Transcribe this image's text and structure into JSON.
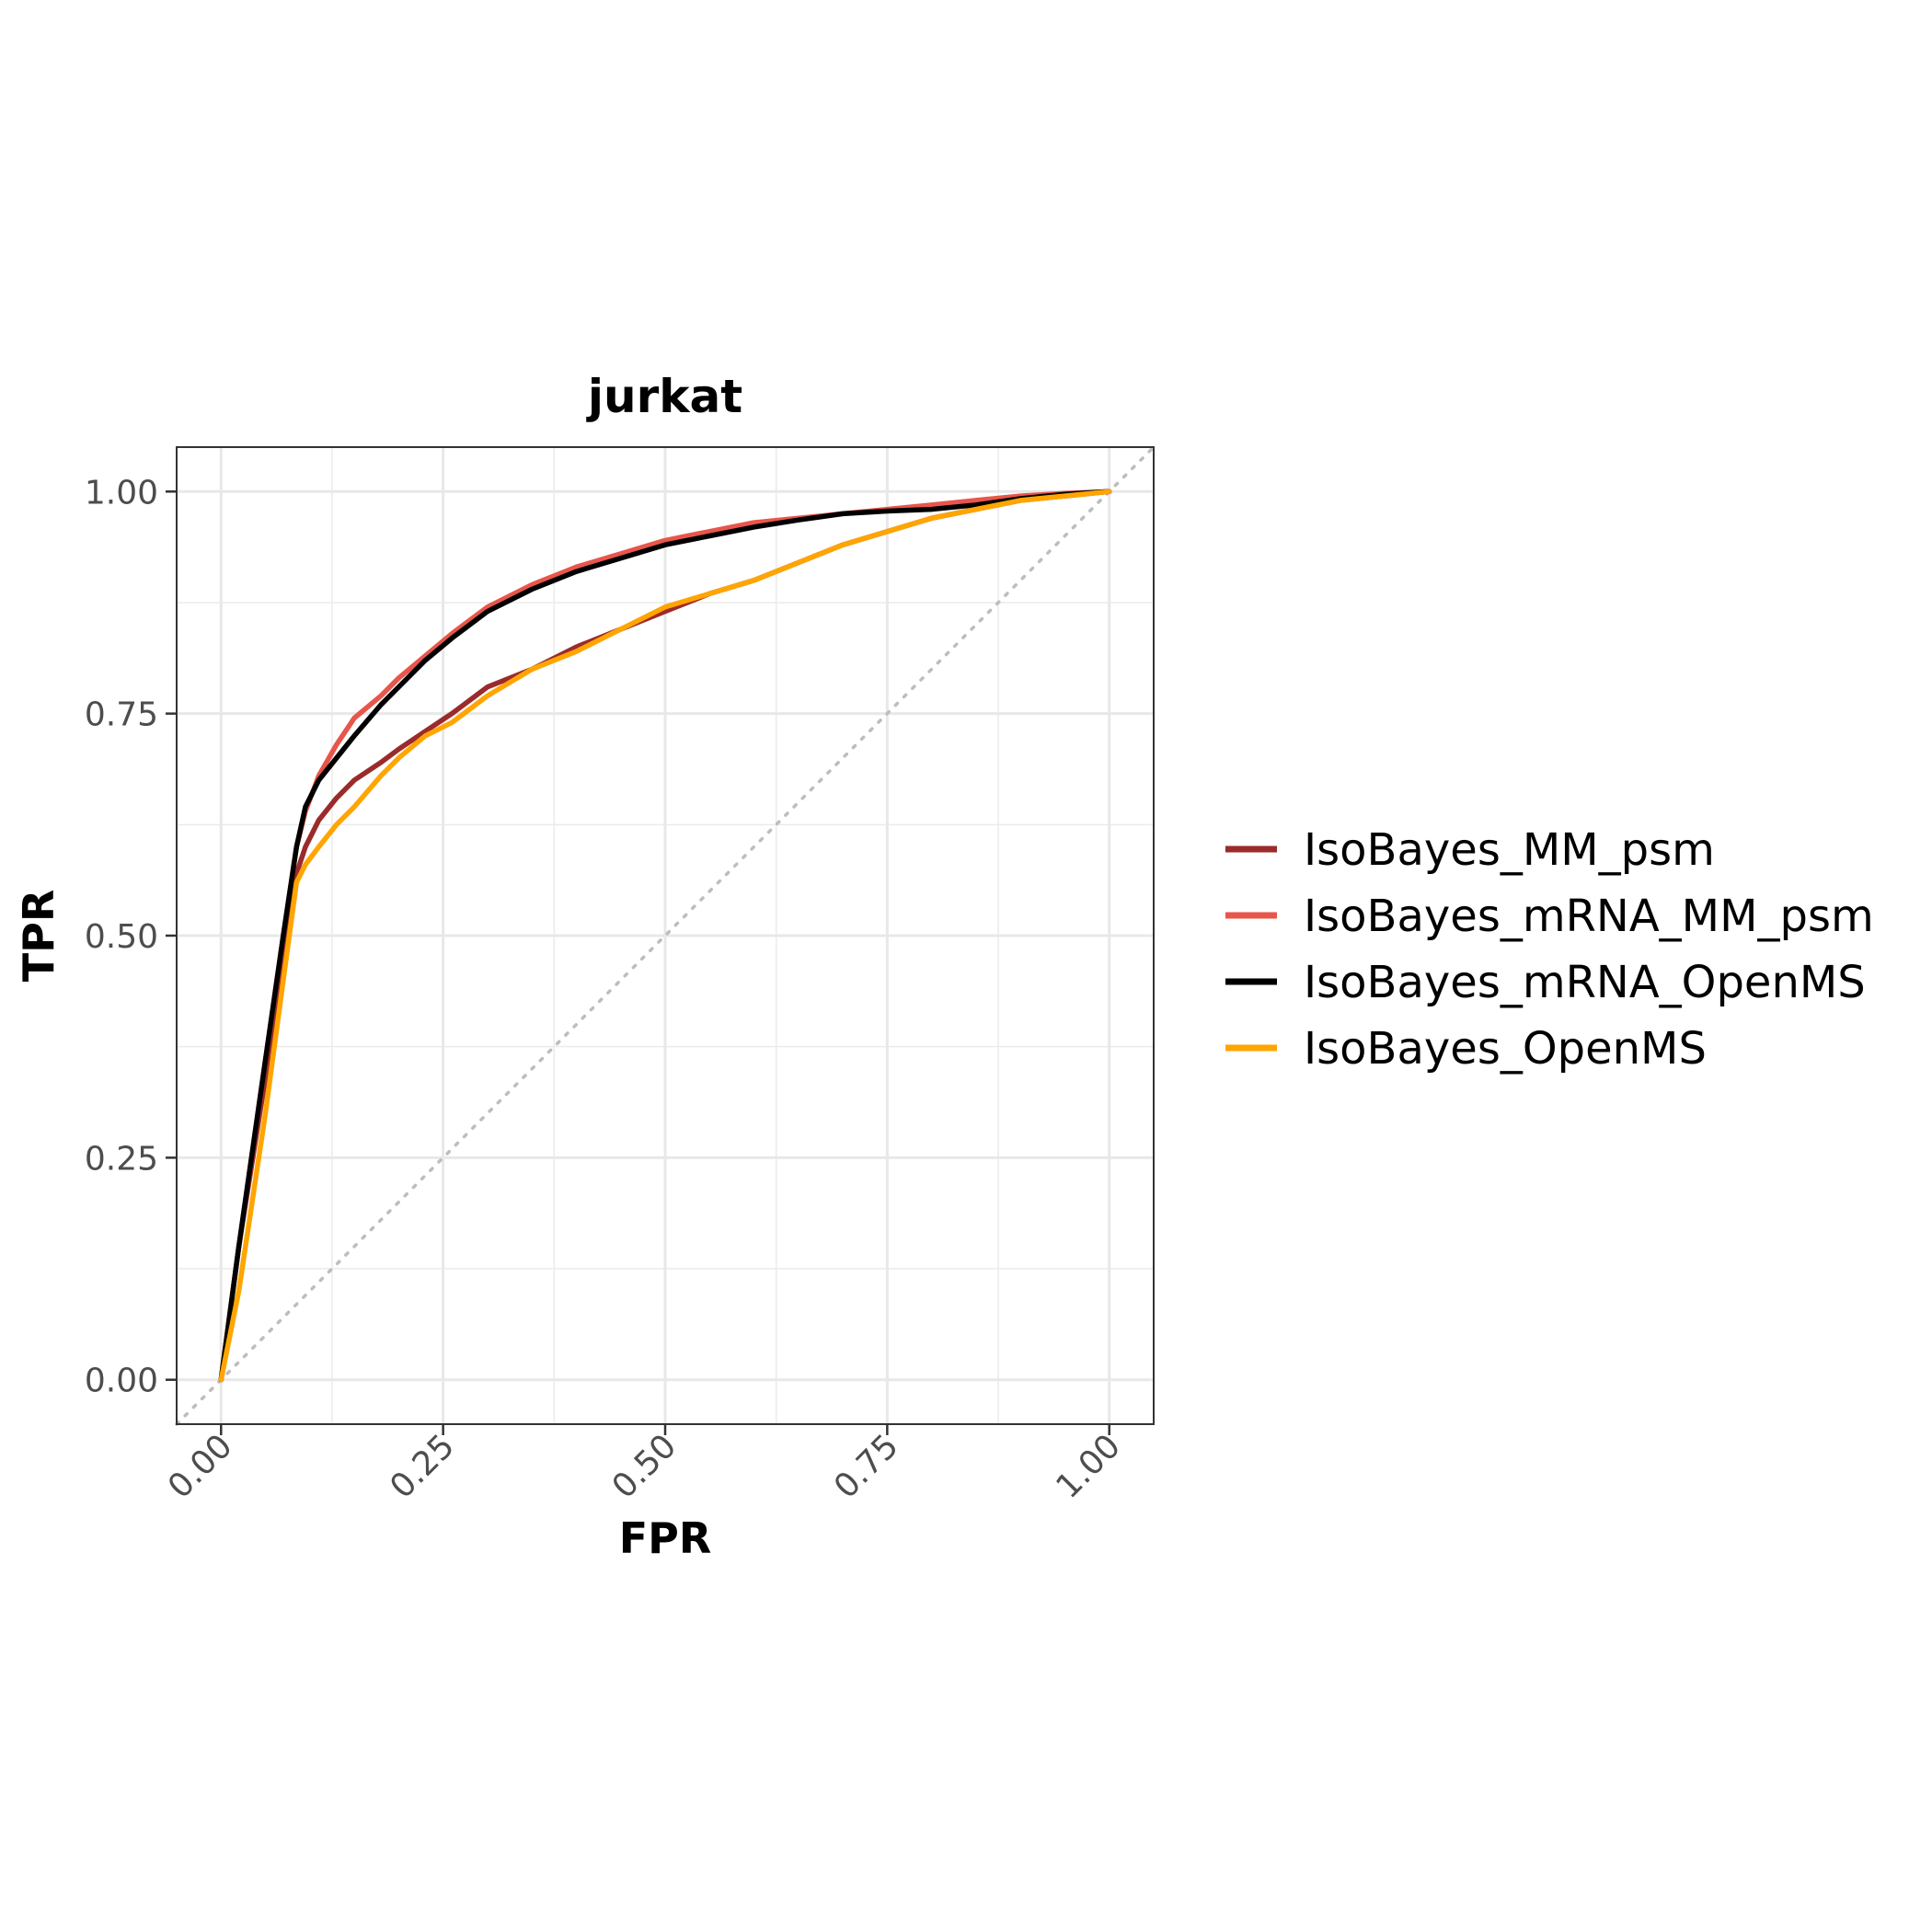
{
  "chart_data": {
    "type": "line",
    "title": "jurkat",
    "xlabel": "FPR",
    "ylabel": "TPR",
    "xlim": [
      -0.05,
      1.05
    ],
    "ylim": [
      -0.05,
      1.05
    ],
    "xticks": [
      0,
      0.25,
      0.5,
      0.75,
      1
    ],
    "yticks": [
      0,
      0.25,
      0.5,
      0.75,
      1
    ],
    "xtick_labels": [
      "0.00",
      "0.25",
      "0.50",
      "0.75",
      "1.00"
    ],
    "ytick_labels": [
      "0.00",
      "0.25",
      "0.50",
      "0.75",
      "1.00"
    ],
    "grid": true,
    "diagonal_reference": true,
    "legend_position": "right",
    "series": [
      {
        "name": "IsoBayes_MM_psm",
        "color": "#9B2B2B",
        "x": [
          0,
          0.02,
          0.05,
          0.07,
          0.085,
          0.095,
          0.11,
          0.13,
          0.15,
          0.18,
          0.2,
          0.23,
          0.26,
          0.3,
          0.35,
          0.4,
          0.45,
          0.5,
          0.55,
          0.6,
          0.65,
          0.7,
          0.75,
          0.8,
          0.85,
          0.9,
          0.95,
          1
        ],
        "y": [
          0,
          0.15,
          0.34,
          0.47,
          0.57,
          0.6,
          0.63,
          0.655,
          0.675,
          0.695,
          0.71,
          0.73,
          0.75,
          0.78,
          0.8,
          0.825,
          0.845,
          0.865,
          0.885,
          0.9,
          0.92,
          0.94,
          0.955,
          0.97,
          0.98,
          0.99,
          0.995,
          1
        ]
      },
      {
        "name": "IsoBayes_mRNA_MM_psm",
        "color": "#E8564B",
        "x": [
          0,
          0.02,
          0.05,
          0.07,
          0.085,
          0.095,
          0.11,
          0.13,
          0.15,
          0.18,
          0.2,
          0.23,
          0.26,
          0.3,
          0.35,
          0.4,
          0.45,
          0.5,
          0.55,
          0.6,
          0.65,
          0.7,
          0.75,
          0.8,
          0.85,
          0.9,
          0.95,
          1
        ],
        "y": [
          0,
          0.15,
          0.36,
          0.5,
          0.6,
          0.64,
          0.68,
          0.715,
          0.745,
          0.77,
          0.79,
          0.815,
          0.84,
          0.87,
          0.895,
          0.915,
          0.93,
          0.945,
          0.955,
          0.965,
          0.97,
          0.975,
          0.98,
          0.985,
          0.99,
          0.995,
          0.998,
          1
        ]
      },
      {
        "name": "IsoBayes_mRNA_OpenMS",
        "color": "#000000",
        "x": [
          0,
          0.02,
          0.05,
          0.07,
          0.085,
          0.095,
          0.11,
          0.13,
          0.15,
          0.18,
          0.2,
          0.23,
          0.26,
          0.3,
          0.35,
          0.4,
          0.45,
          0.5,
          0.55,
          0.6,
          0.65,
          0.7,
          0.75,
          0.8,
          0.85,
          0.9,
          0.95,
          1
        ],
        "y": [
          0,
          0.15,
          0.36,
          0.5,
          0.6,
          0.645,
          0.675,
          0.7,
          0.725,
          0.76,
          0.78,
          0.81,
          0.835,
          0.865,
          0.89,
          0.91,
          0.925,
          0.94,
          0.95,
          0.96,
          0.968,
          0.975,
          0.978,
          0.98,
          0.985,
          0.992,
          0.997,
          1
        ]
      },
      {
        "name": "IsoBayes_OpenMS",
        "color": "#FFA500",
        "x": [
          0,
          0.02,
          0.05,
          0.07,
          0.085,
          0.095,
          0.11,
          0.13,
          0.15,
          0.18,
          0.2,
          0.23,
          0.26,
          0.3,
          0.35,
          0.4,
          0.45,
          0.5,
          0.55,
          0.6,
          0.65,
          0.7,
          0.75,
          0.8,
          0.85,
          0.9,
          0.95,
          1
        ],
        "y": [
          0,
          0.1,
          0.3,
          0.45,
          0.56,
          0.58,
          0.6,
          0.625,
          0.645,
          0.68,
          0.7,
          0.725,
          0.74,
          0.77,
          0.8,
          0.82,
          0.845,
          0.87,
          0.885,
          0.9,
          0.92,
          0.94,
          0.955,
          0.97,
          0.98,
          0.99,
          0.995,
          1
        ]
      }
    ]
  }
}
